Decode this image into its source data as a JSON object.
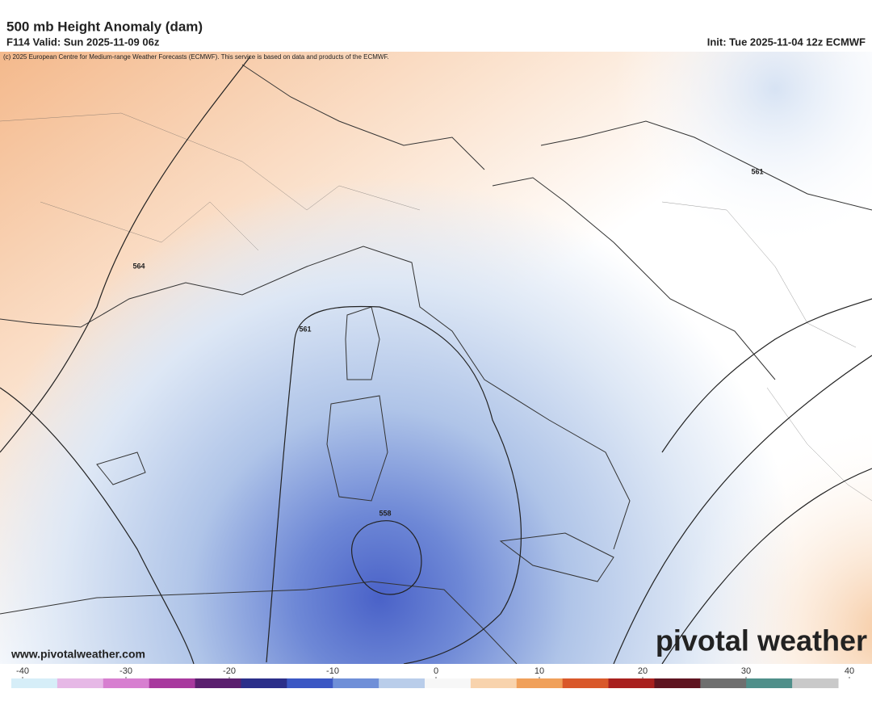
{
  "header": {
    "title": "500 mb Height Anomaly (dam)",
    "valid": "F114 Valid: Sun 2025-11-09 06z",
    "init": "Init: Tue 2025-11-04 12z ECMWF",
    "copyright": "(c) 2025 European Centre for Medium-range Weather Forecasts (ECMWF). This service is based on data and products of the ECMWF."
  },
  "contour_labels": [
    "564",
    "561",
    "561",
    "558"
  ],
  "footer": {
    "website": "www.pivotalweather.com",
    "logo": "pivotal weather"
  },
  "colorbar": {
    "range": [
      -40,
      40
    ],
    "ticks": [
      -40,
      -30,
      -20,
      -10,
      0,
      10,
      20,
      30,
      40
    ],
    "colors": [
      "#d6eef8",
      "#e6b8e6",
      "#d77fd0",
      "#a8399e",
      "#5a1f6e",
      "#2b2f8a",
      "#3b57c4",
      "#6f8fd8",
      "#b9cdea",
      "#f7f7f7",
      "#f8d3ad",
      "#f0a05a",
      "#d9582a",
      "#a8201e",
      "#5e1420",
      "#6f6f6f",
      "#4f8f8a",
      "#c9c9c9"
    ]
  }
}
